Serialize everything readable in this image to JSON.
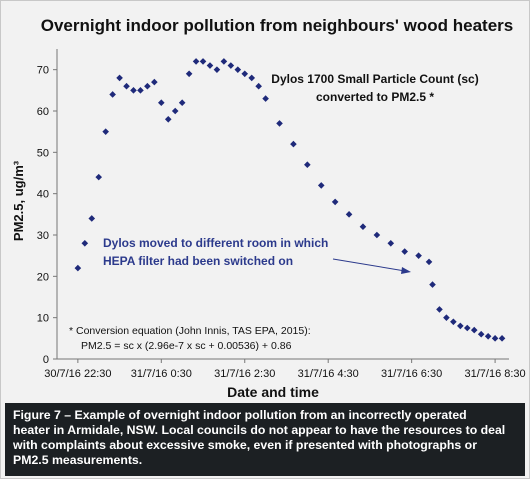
{
  "chart_data": {
    "type": "scatter",
    "title": "Overnight indoor pollution from neighbours' wood heaters",
    "xlabel": "Date and time",
    "ylabel": "PM2.5, ug/m³",
    "ylim": [
      0,
      75
    ],
    "xlim": [
      "30/7/16 22:00",
      "31/7/16 8:50"
    ],
    "grid": false,
    "x_tick_labels": [
      "30/7/16 22:30",
      "31/7/16 0:30",
      "31/7/16 2:30",
      "31/7/16 4:30",
      "31/7/16 6:30",
      "31/7/16 8:30"
    ],
    "y_tick_labels": [
      "0",
      "10",
      "20",
      "30",
      "40",
      "50",
      "60",
      "70"
    ],
    "marker_color": "#1f2a7a",
    "series": [
      {
        "x": [
          "30/7/16 22:30",
          "30/7/16 22:40",
          "30/7/16 22:50",
          "30/7/16 23:00",
          "30/7/16 23:10",
          "30/7/16 23:20",
          "30/7/16 23:30",
          "30/7/16 23:40",
          "30/7/16 23:50",
          "31/7/16 0:00",
          "31/7/16 0:10",
          "31/7/16 0:20",
          "31/7/16 0:30",
          "31/7/16 0:40",
          "31/7/16 0:50",
          "31/7/16 1:00",
          "31/7/16 1:10",
          "31/7/16 1:20",
          "31/7/16 1:30",
          "31/7/16 1:40",
          "31/7/16 1:50",
          "31/7/16 2:00",
          "31/7/16 2:10",
          "31/7/16 2:20",
          "31/7/16 2:30",
          "31/7/16 2:40",
          "31/7/16 2:50",
          "31/7/16 3:00",
          "31/7/16 3:20",
          "31/7/16 3:40",
          "31/7/16 4:00",
          "31/7/16 4:20",
          "31/7/16 4:40",
          "31/7/16 5:00",
          "31/7/16 5:20",
          "31/7/16 5:40",
          "31/7/16 6:00",
          "31/7/16 6:20",
          "31/7/16 6:40",
          "31/7/16 6:55",
          "31/7/16 7:00",
          "31/7/16 7:10",
          "31/7/16 7:20",
          "31/7/16 7:30",
          "31/7/16 7:40",
          "31/7/16 7:50",
          "31/7/16 8:00",
          "31/7/16 8:10",
          "31/7/16 8:20",
          "31/7/16 8:30",
          "31/7/16 8:40"
        ],
        "values": [
          22,
          28,
          34,
          44,
          55,
          64,
          68,
          66,
          65,
          65,
          66,
          67,
          62,
          58,
          60,
          62,
          69,
          72,
          72,
          71,
          70,
          72,
          71,
          70,
          69,
          68,
          66,
          63,
          57,
          52,
          47,
          42,
          38,
          35,
          32,
          30,
          28,
          26,
          25,
          23.5,
          18,
          12,
          10,
          9,
          8,
          7.5,
          7,
          6,
          5.5,
          5,
          5
        ]
      }
    ],
    "annotations": [
      "Dylos 1700 Small Particle Count (sc)",
      "converted to PM2.5 *",
      "Dylos moved to different room in which",
      "HEPA filter had been switched on",
      "* Conversion equation (John Innis, TAS EPA, 2015):",
      "PM2.5 = sc x (2.96e-7 x sc + 0.00536) + 0.86"
    ]
  },
  "caption": {
    "line1": "Figure 7 –  Example of overnight indoor pollution from an incorrectly operated",
    "line2": "heater in Armidale, NSW.  Local councils do not appear to have the resources to deal",
    "line3": "with complaints about excessive smoke, even if presented with photographs or",
    "line4": "PM2.5 measurements."
  }
}
